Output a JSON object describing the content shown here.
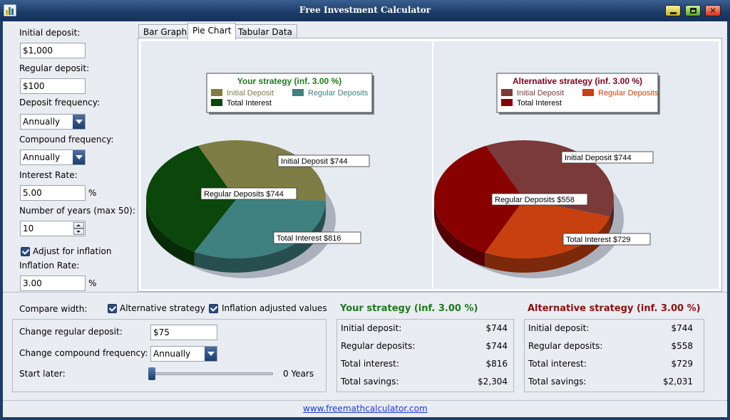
{
  "window": {
    "title": "Free Investment Calculator"
  },
  "inputs": {
    "initial_deposit_label": "Initial deposit:",
    "initial_deposit_value": "$1,000",
    "regular_deposit_label": "Regular deposit:",
    "regular_deposit_value": "$100",
    "deposit_frequency_label": "Deposit frequency:",
    "deposit_frequency_value": "Annually",
    "compound_frequency_label": "Compound frequency:",
    "compound_frequency_value": "Annually",
    "interest_rate_label": "Interest Rate:",
    "interest_rate_value": "5.00",
    "interest_rate_unit": "%",
    "years_label": "Number of years (max 50):",
    "years_value": "10",
    "adjust_inflation_label": "Adjust for inflation",
    "adjust_inflation_checked": true,
    "inflation_rate_label": "Inflation Rate:",
    "inflation_rate_value": "3.00",
    "inflation_rate_unit": "%"
  },
  "tabs": [
    {
      "label": "Bar Graph",
      "active": false
    },
    {
      "label": "Pie Chart",
      "active": true
    },
    {
      "label": "Tabular Data",
      "active": false
    }
  ],
  "charts": {
    "left": {
      "title": "Your strategy (inf. 3.00 %)",
      "title_color": "#1d7a1d",
      "legend": [
        {
          "label": "Initial Deposit",
          "color": "#7d7d45"
        },
        {
          "label": "Regular Deposits",
          "color": "#3f8080"
        },
        {
          "label": "Total Interest",
          "color": "#0b460b"
        }
      ],
      "slices": [
        {
          "name": "Initial Deposit",
          "value": 744,
          "label": "Initial Deposit $744",
          "color": "#7d7d45"
        },
        {
          "name": "Regular Deposits",
          "value": 744,
          "label": "Regular Deposits $744",
          "color": "#3f8080"
        },
        {
          "name": "Total Interest",
          "value": 816,
          "label": "Total Interest $816",
          "color": "#0b460b"
        }
      ]
    },
    "right": {
      "title": "Alternative strategy (inf. 3.00 %)",
      "title_color": "#800020",
      "legend": [
        {
          "label": "Initial Deposit",
          "color": "#7a3a3a"
        },
        {
          "label": "Regular Deposits",
          "color": "#c84010"
        },
        {
          "label": "Total Interest",
          "color": "#880000"
        }
      ],
      "slices": [
        {
          "name": "Initial Deposit",
          "value": 744,
          "label": "Initial Deposit $744",
          "color": "#7a3a3a"
        },
        {
          "name": "Regular Deposits",
          "value": 558,
          "label": "Regular Deposits $558",
          "color": "#c84010"
        },
        {
          "name": "Total Interest",
          "value": 729,
          "label": "Total Interest $729",
          "color": "#880000"
        }
      ]
    }
  },
  "compare": {
    "compare_label": "Compare width:",
    "alternative_label": "Alternative strategy",
    "alternative_checked": true,
    "inflation_values_label": "Inflation adjusted values",
    "inflation_values_checked": true,
    "change_regular_label": "Change regular deposit:",
    "change_regular_value": "$75",
    "change_compound_label": "Change compound frequency:",
    "change_compound_value": "Annually",
    "start_later_label": "Start later:",
    "start_later_value": "0 Years",
    "start_later_fraction": 0
  },
  "summary": {
    "yours": {
      "title": "Your strategy (inf. 3.00 %)",
      "rows": [
        {
          "label": "Initial deposit:",
          "value": "$744"
        },
        {
          "label": "Regular deposits:",
          "value": "$744"
        },
        {
          "label": "Total interest:",
          "value": "$816"
        },
        {
          "label": "Total savings:",
          "value": "$2,304"
        }
      ]
    },
    "alternative": {
      "title": "Alternative strategy (inf. 3.00 %)",
      "rows": [
        {
          "label": "Initial deposit:",
          "value": "$744"
        },
        {
          "label": "Regular deposits:",
          "value": "$558"
        },
        {
          "label": "Total interest:",
          "value": "$729"
        },
        {
          "label": "Total savings:",
          "value": "$2,031"
        }
      ]
    }
  },
  "footer": {
    "link": "www.freemathcalculator.com"
  }
}
